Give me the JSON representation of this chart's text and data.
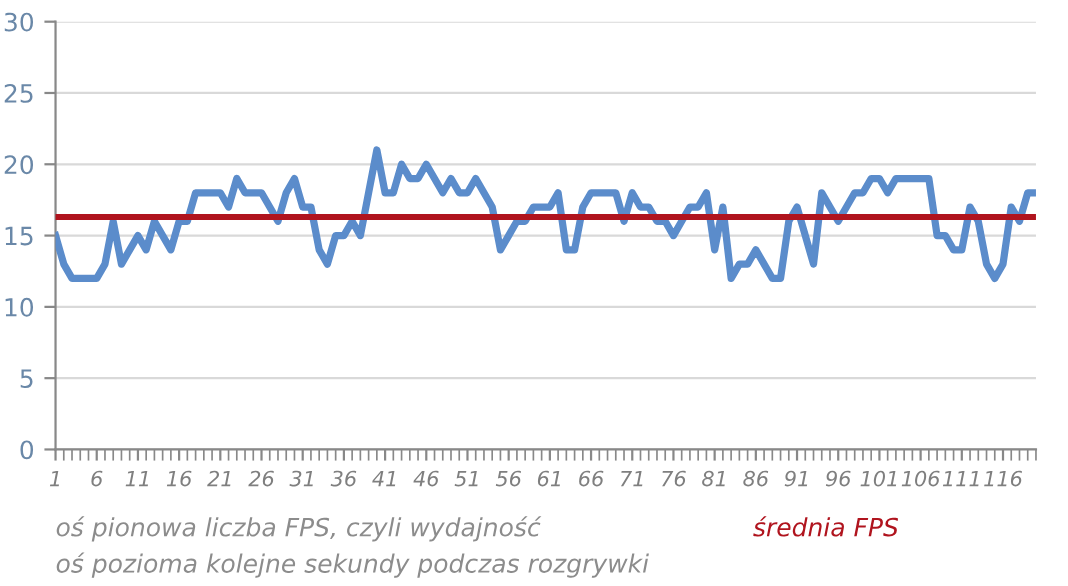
{
  "chart_data": {
    "type": "line",
    "x": [
      1,
      2,
      3,
      4,
      5,
      6,
      7,
      8,
      9,
      10,
      11,
      12,
      13,
      14,
      15,
      16,
      17,
      18,
      19,
      20,
      21,
      22,
      23,
      24,
      25,
      26,
      27,
      28,
      29,
      30,
      31,
      32,
      33,
      34,
      35,
      36,
      37,
      38,
      39,
      40,
      41,
      42,
      43,
      44,
      45,
      46,
      47,
      48,
      49,
      50,
      51,
      52,
      53,
      54,
      55,
      56,
      57,
      58,
      59,
      60,
      61,
      62,
      63,
      64,
      65,
      66,
      67,
      68,
      69,
      70,
      71,
      72,
      73,
      74,
      75,
      76,
      77,
      78,
      79,
      80,
      81,
      82,
      83,
      84,
      85,
      86,
      87,
      88,
      89,
      90,
      91,
      92,
      93,
      94,
      95,
      96,
      97,
      98,
      99,
      100,
      101,
      102,
      103,
      104,
      105,
      106,
      107,
      108,
      109,
      110,
      111,
      112,
      113,
      114,
      115,
      116,
      117,
      118,
      119,
      120
    ],
    "series": [
      {
        "color": "#5b8ccb",
        "values": [
          15,
          13,
          12,
          12,
          12,
          12,
          13,
          16,
          13,
          14,
          15,
          14,
          16,
          15,
          14,
          16,
          16,
          18,
          18,
          18,
          18,
          17,
          19,
          18,
          18,
          18,
          17,
          16,
          18,
          19,
          17,
          17,
          14,
          13,
          15,
          15,
          16,
          15,
          18,
          21,
          18,
          18,
          20,
          19,
          19,
          20,
          19,
          18,
          19,
          18,
          18,
          19,
          18,
          17,
          14,
          15,
          16,
          16,
          17,
          17,
          17,
          18,
          14,
          14,
          17,
          18,
          18,
          18,
          18,
          16,
          18,
          17,
          17,
          16,
          16,
          15,
          16,
          17,
          17,
          18,
          14,
          17,
          12,
          13,
          13,
          14,
          13,
          12,
          12,
          16,
          17,
          15,
          13,
          18,
          17,
          16,
          17,
          18,
          18,
          19,
          19,
          18,
          19,
          19,
          19,
          19,
          19,
          15,
          15,
          14,
          14,
          17,
          16,
          13,
          12,
          13,
          17,
          16,
          18,
          18
        ]
      }
    ],
    "xlim": [
      1,
      120
    ],
    "xticks": [
      1,
      6,
      11,
      16,
      21,
      26,
      31,
      36,
      41,
      46,
      51,
      56,
      61,
      66,
      71,
      76,
      81,
      86,
      91,
      96,
      101,
      106,
      111,
      116
    ],
    "ylim": [
      0,
      30
    ],
    "yticks": [
      0,
      5,
      10,
      15,
      20,
      25,
      30
    ],
    "grid": "y",
    "line_style": "solid",
    "ref_lines": [
      {
        "axis": "y",
        "value": 16.3,
        "label": "średnia FPS",
        "color": "#b0141e"
      }
    ],
    "annotations": [
      "oś pionowa liczba FPS, czyli wydajność",
      "oś pozioma kolejne sekundy podczas rozgrywki"
    ]
  }
}
